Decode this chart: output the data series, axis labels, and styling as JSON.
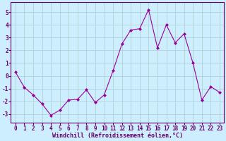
{
  "x": [
    0,
    1,
    2,
    3,
    4,
    5,
    6,
    7,
    8,
    9,
    10,
    11,
    12,
    13,
    14,
    15,
    16,
    17,
    18,
    19,
    20,
    21,
    22,
    23
  ],
  "y": [
    0.3,
    -0.9,
    -1.5,
    -2.2,
    -3.1,
    -2.7,
    -1.9,
    -1.85,
    -1.1,
    -2.1,
    -1.5,
    0.4,
    2.5,
    3.6,
    3.7,
    5.2,
    2.2,
    4.0,
    2.6,
    3.3,
    1.0,
    -1.9,
    -0.85,
    -1.3
  ],
  "line_color": "#990099",
  "marker": "D",
  "marker_size": 2.0,
  "bg_color": "#cceeff",
  "grid_color": "#aacccc",
  "xlabel": "Windchill (Refroidissement éolien,°C)",
  "ylabel_ticks": [
    "-3",
    "-2",
    "-1",
    "0",
    "1",
    "2",
    "3",
    "4",
    "5"
  ],
  "yticks": [
    -3,
    -2,
    -1,
    0,
    1,
    2,
    3,
    4,
    5
  ],
  "ylim": [
    -3.7,
    5.8
  ],
  "xlim": [
    -0.5,
    23.5
  ],
  "label_color": "#660066",
  "tick_color": "#660066",
  "font_name": "monospace",
  "label_fontsize": 6.0,
  "tick_fontsize": 5.5
}
